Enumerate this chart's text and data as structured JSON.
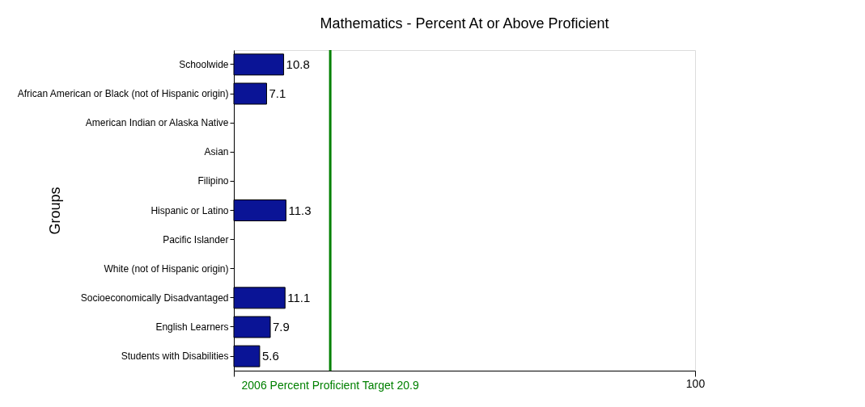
{
  "chart_data": {
    "type": "bar",
    "orientation": "horizontal",
    "title": "Mathematics - Percent At or Above Proficient",
    "ylabel": "Groups",
    "categories": [
      "Schoolwide",
      "African American or Black (not of Hispanic origin)",
      "American Indian or Alaska Native",
      "Asian",
      "Filipino",
      "Hispanic or Latino",
      "Pacific Islander",
      "White (not of Hispanic origin)",
      "Socioeconomically Disadvantaged",
      "English Learners",
      "Students with Disabilities"
    ],
    "values": [
      10.8,
      7.1,
      null,
      null,
      null,
      11.3,
      null,
      null,
      11.1,
      7.9,
      5.6
    ],
    "color": "#0a1496",
    "xlim": [
      0,
      100
    ],
    "xticks": [
      {
        "value": 0,
        "label": null
      },
      {
        "value": 100,
        "label": "100"
      }
    ],
    "ref_lines": [
      {
        "axis": "x",
        "value": 20.9,
        "label": "2006 Percent Proficient Target 20.9",
        "color": "#008000"
      }
    ],
    "data_labels": true,
    "grid": false
  }
}
